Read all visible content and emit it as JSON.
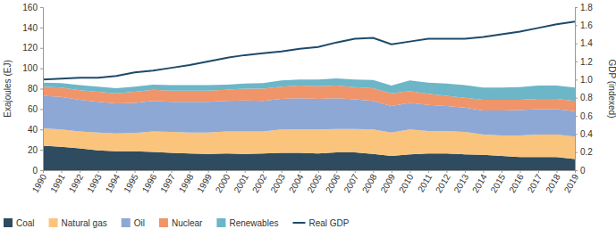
{
  "chart_data": {
    "type": "area",
    "stacked": true,
    "x": [
      1990,
      1991,
      1992,
      1993,
      1994,
      1995,
      1996,
      1997,
      1998,
      1999,
      2000,
      2001,
      2002,
      2003,
      2004,
      2005,
      2006,
      2007,
      2008,
      2009,
      2010,
      2011,
      2012,
      2013,
      2014,
      2015,
      2016,
      2017,
      2018,
      2019
    ],
    "xlim": [
      1990,
      2019
    ],
    "xticks": [
      1990,
      1991,
      1992,
      1993,
      1994,
      1995,
      1996,
      1997,
      1998,
      1999,
      2000,
      2001,
      2002,
      2003,
      2004,
      2005,
      2006,
      2007,
      2008,
      2009,
      2010,
      2011,
      2012,
      2013,
      2014,
      2015,
      2016,
      2017,
      2018,
      2019
    ],
    "y_label": "Exajoules (EJ)",
    "y2_label": "GDP (indexed)",
    "ylim": [
      0,
      160
    ],
    "yticks": [
      0,
      20,
      40,
      60,
      80,
      100,
      120,
      140,
      160
    ],
    "y2lim": [
      0,
      1.8
    ],
    "y2ticks": [
      0,
      0.2,
      0.4,
      0.6,
      0.8,
      {
        "value": 1.0,
        "label": "1.0"
      },
      1.2,
      1.4,
      1.6,
      1.8
    ],
    "grid": false,
    "legend": "bottom",
    "series": [
      {
        "name": "Coal",
        "type": "area",
        "color": "#2f4b5f",
        "values": [
          24,
          23,
          21.5,
          19.5,
          18.5,
          18.5,
          18,
          17,
          16.5,
          16,
          16.5,
          16,
          16.5,
          17,
          17,
          16.5,
          17.5,
          17.5,
          16,
          14,
          15.5,
          16.5,
          16.5,
          15.5,
          15,
          14,
          13,
          13,
          13,
          11
        ]
      },
      {
        "name": "Natural gas",
        "type": "area",
        "color": "#fbc47c",
        "values": [
          17,
          17,
          16.5,
          17.5,
          17.5,
          18,
          20,
          20.5,
          20.5,
          21,
          21.5,
          22,
          21.5,
          23,
          23,
          23.5,
          23,
          23,
          24,
          23,
          24.5,
          22,
          22,
          22,
          20,
          20,
          21,
          22,
          22,
          22
        ]
      },
      {
        "name": "Oil",
        "type": "area",
        "color": "#8ea8d5",
        "values": [
          32,
          32,
          31,
          30,
          29.5,
          29.5,
          30,
          29.5,
          30,
          30,
          30,
          30.5,
          30,
          30,
          30.5,
          30,
          30,
          29,
          28,
          26,
          26,
          25.5,
          24.5,
          24,
          23.5,
          24.5,
          25,
          25,
          25,
          25
        ]
      },
      {
        "name": "Nuclear",
        "type": "area",
        "color": "#f0946a",
        "values": [
          9,
          9,
          9.5,
          10,
          10,
          11,
          11,
          11,
          11,
          11,
          11,
          11.5,
          12,
          12,
          12.5,
          12.5,
          12.5,
          12,
          12.5,
          12.5,
          11.5,
          11,
          10,
          9.5,
          10.5,
          10.5,
          10,
          10,
          10,
          10
        ]
      },
      {
        "name": "Renewables",
        "type": "area",
        "color": "#6cb6c8",
        "values": [
          4,
          4.5,
          5,
          5,
          5,
          5,
          5,
          5.5,
          5.5,
          5.5,
          5,
          5,
          5.5,
          6,
          6,
          6.5,
          7,
          7.5,
          8,
          7.5,
          10.5,
          11,
          12,
          12.5,
          12,
          12,
          12.5,
          13,
          13,
          13
        ]
      },
      {
        "name": "Real GDP",
        "type": "line",
        "axis": "y2",
        "color": "#1d4a6b",
        "values": [
          1.0,
          1.01,
          1.02,
          1.02,
          1.04,
          1.08,
          1.1,
          1.13,
          1.16,
          1.2,
          1.24,
          1.27,
          1.29,
          1.31,
          1.34,
          1.36,
          1.41,
          1.45,
          1.46,
          1.39,
          1.42,
          1.45,
          1.45,
          1.45,
          1.47,
          1.5,
          1.53,
          1.57,
          1.61,
          1.64
        ]
      }
    ]
  }
}
